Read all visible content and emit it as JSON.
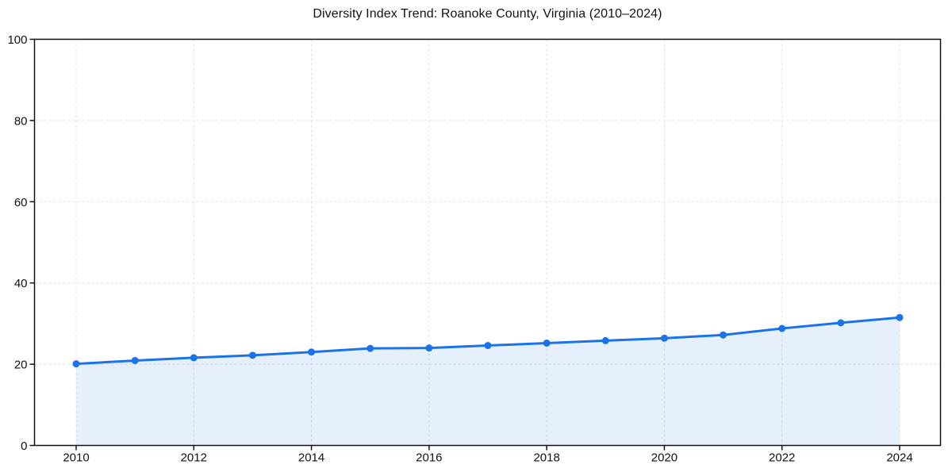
{
  "chart_data": {
    "type": "area",
    "title": "Diversity Index Trend: Roanoke County, Virginia (2010–2024)",
    "x": [
      2010,
      2011,
      2012,
      2013,
      2014,
      2015,
      2016,
      2017,
      2018,
      2019,
      2020,
      2021,
      2022,
      2023,
      2024
    ],
    "values": [
      20.1,
      20.9,
      21.6,
      22.2,
      23.0,
      23.9,
      24.0,
      24.6,
      25.2,
      25.8,
      26.4,
      27.2,
      28.8,
      30.2,
      31.5
    ],
    "series_name": "Diversity Index",
    "xlabel": "",
    "ylabel": "",
    "xticks": [
      2010,
      2012,
      2014,
      2016,
      2018,
      2020,
      2022,
      2024
    ],
    "yticks": [
      0,
      20,
      40,
      60,
      80,
      100
    ],
    "xlim": [
      2009.3,
      2024.7
    ],
    "ylim": [
      0,
      100
    ],
    "grid": true,
    "legend": "none",
    "colors": {
      "line": "#1a73e8",
      "marker": "#1a73e8",
      "fill_opacity": 0.11,
      "grid": "#e0e0e0",
      "axis": "#111111",
      "tick_label": "#111111",
      "background": "#ffffff"
    }
  }
}
